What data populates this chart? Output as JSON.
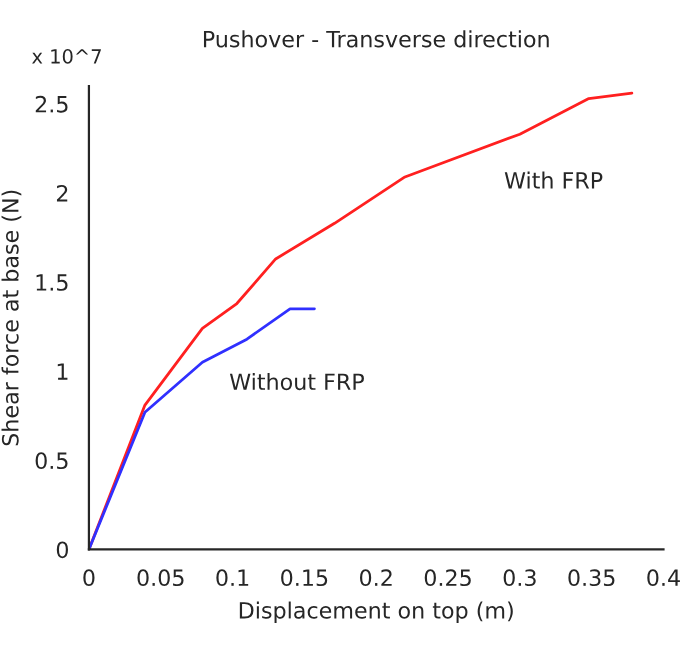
{
  "chart_data": {
    "type": "line",
    "title": "Pushover - Transverse direction",
    "xlabel": "Displacement on top (m)",
    "ylabel": "Shear force at base (N)",
    "annotations": [
      "x 10^7"
    ],
    "xlim": [
      0,
      0.4
    ],
    "xticks": [
      0,
      0.05,
      0.1,
      0.15,
      0.2,
      0.25,
      0.3,
      0.35,
      0.4
    ],
    "ylim": [
      0,
      2.6
    ],
    "yticks": [
      0,
      0.5,
      1,
      1.5,
      2,
      2.5
    ],
    "grid": false,
    "line_style": "solid",
    "marker": "none",
    "series": [
      {
        "name": "With FRP",
        "color": "#ff2020",
        "x": [
          0,
          0.039,
          0.079,
          0.103,
          0.13,
          0.171,
          0.22,
          0.3,
          0.348,
          0.378
        ],
        "values": [
          0,
          0.81,
          1.24,
          1.38,
          1.63,
          1.83,
          2.09,
          2.33,
          2.53,
          2.56
        ]
      },
      {
        "name": "Without FRP",
        "color": "#3030ff",
        "x": [
          0,
          0.039,
          0.079,
          0.11,
          0.14,
          0.157
        ],
        "values": [
          0,
          0.77,
          1.05,
          1.18,
          1.35,
          1.35
        ]
      }
    ]
  }
}
